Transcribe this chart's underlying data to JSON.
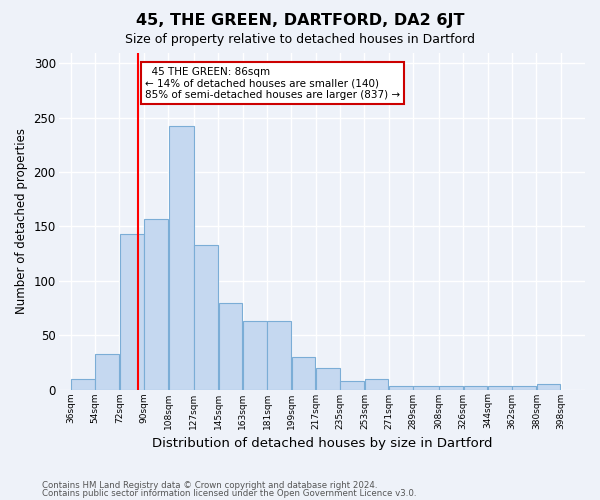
{
  "title": "45, THE GREEN, DARTFORD, DA2 6JT",
  "subtitle": "Size of property relative to detached houses in Dartford",
  "xlabel": "Distribution of detached houses by size in Dartford",
  "ylabel": "Number of detached properties",
  "footnote1": "Contains HM Land Registry data © Crown copyright and database right 2024.",
  "footnote2": "Contains public sector information licensed under the Open Government Licence v3.0.",
  "annotation_title": "45 THE GREEN: 86sqm",
  "annotation_line1": "← 14% of detached houses are smaller (140)",
  "annotation_line2": "85% of semi-detached houses are larger (837) →",
  "property_size": 86,
  "bar_left_edges": [
    36,
    54,
    72,
    90,
    108,
    127,
    145,
    163,
    181,
    199,
    217,
    235,
    253,
    271,
    289,
    308,
    326,
    344,
    362,
    380
  ],
  "bar_widths": [
    18,
    18,
    18,
    18,
    19,
    18,
    18,
    18,
    18,
    18,
    18,
    18,
    18,
    18,
    19,
    18,
    18,
    18,
    18,
    18
  ],
  "bar_heights": [
    10,
    33,
    143,
    157,
    242,
    133,
    80,
    63,
    63,
    30,
    20,
    8,
    10,
    3,
    3,
    3,
    3,
    3,
    3,
    5
  ],
  "tick_labels": [
    "36sqm",
    "54sqm",
    "72sqm",
    "90sqm",
    "108sqm",
    "127sqm",
    "145sqm",
    "163sqm",
    "181sqm",
    "199sqm",
    "217sqm",
    "235sqm",
    "253sqm",
    "271sqm",
    "289sqm",
    "308sqm",
    "326sqm",
    "344sqm",
    "362sqm",
    "380sqm",
    "398sqm"
  ],
  "tick_positions": [
    36,
    54,
    72,
    90,
    108,
    127,
    145,
    163,
    181,
    199,
    217,
    235,
    253,
    271,
    289,
    308,
    326,
    344,
    362,
    380,
    398
  ],
  "ylim": [
    0,
    310
  ],
  "xlim": [
    27,
    416
  ],
  "bar_color": "#c5d8f0",
  "bar_edge_color": "#7badd6",
  "red_line_x": 86,
  "background_color": "#eef2f9",
  "grid_color": "#ffffff",
  "annotation_box_color": "#ffffff",
  "annotation_box_edge": "#cc0000"
}
